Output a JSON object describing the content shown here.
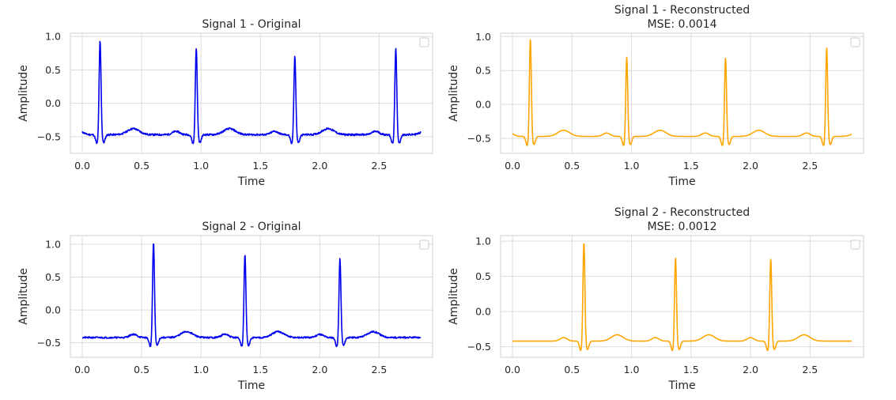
{
  "colors": {
    "original": "#0000ee",
    "reconstructed": "#ffa500",
    "grid": "#dcdcdc"
  },
  "chart_data": [
    {
      "type": "line",
      "title": "Signal 1 - Original",
      "subtitle": "",
      "xlabel": "Time",
      "ylabel": "Amplitude",
      "xlim": [
        -0.1,
        2.95
      ],
      "ylim": [
        -0.75,
        1.05
      ],
      "xticks": [
        0.0,
        0.5,
        1.0,
        1.5,
        2.0,
        2.5
      ],
      "xtick_labels": [
        "0.0",
        "0.5",
        "1.0",
        "1.5",
        "2.0",
        "2.5"
      ],
      "yticks": [
        -0.5,
        0.0,
        0.5,
        1.0
      ],
      "ytick_labels": [
        "−0.5",
        "0.0",
        "0.5",
        "1.0"
      ],
      "grid": true,
      "legend": "top-right (empty)",
      "series": [
        {
          "color": "#0000ee",
          "noise": 0.013,
          "seed": 11,
          "peaks": [
            0.15,
            0.96,
            1.79,
            2.64
          ],
          "peak_heights": [
            0.96,
            0.85,
            0.73,
            0.84
          ],
          "baseline": -0.47,
          "x_end": 2.85
        }
      ]
    },
    {
      "type": "line",
      "title": "Signal 1 - Reconstructed",
      "subtitle": "MSE: 0.0014",
      "xlabel": "Time",
      "ylabel": "Amplitude",
      "xlim": [
        -0.1,
        2.95
      ],
      "ylim": [
        -0.72,
        1.05
      ],
      "xticks": [
        0.0,
        0.5,
        1.0,
        1.5,
        2.0,
        2.5
      ],
      "xtick_labels": [
        "0.0",
        "0.5",
        "1.0",
        "1.5",
        "2.0",
        "2.5"
      ],
      "yticks": [
        -0.5,
        0.0,
        0.5,
        1.0
      ],
      "ytick_labels": [
        "−0.5",
        "0.0",
        "0.5",
        "1.0"
      ],
      "grid": true,
      "legend": "top-right (empty)",
      "series": [
        {
          "color": "#ffa500",
          "noise": 0.0,
          "seed": 12,
          "peaks": [
            0.15,
            0.96,
            1.79,
            2.64
          ],
          "peak_heights": [
            0.99,
            0.72,
            0.71,
            0.86
          ],
          "baseline": -0.47,
          "x_end": 2.85
        }
      ]
    },
    {
      "type": "line",
      "title": "Signal 2 - Original",
      "subtitle": "",
      "xlabel": "Time",
      "ylabel": "Amplitude",
      "xlim": [
        -0.1,
        2.95
      ],
      "ylim": [
        -0.72,
        1.13
      ],
      "xticks": [
        0.0,
        0.5,
        1.0,
        1.5,
        2.0,
        2.5
      ],
      "xtick_labels": [
        "0.0",
        "0.5",
        "1.0",
        "1.5",
        "2.0",
        "2.5"
      ],
      "yticks": [
        -0.5,
        0.0,
        0.5,
        1.0
      ],
      "ytick_labels": [
        "−0.5",
        "0.0",
        "0.5",
        "1.0"
      ],
      "grid": true,
      "legend": "top-right (empty)",
      "series": [
        {
          "color": "#0000ee",
          "noise": 0.012,
          "seed": 21,
          "peaks": [
            0.6,
            1.37,
            2.17
          ],
          "peak_heights": [
            1.05,
            0.86,
            0.8
          ],
          "baseline": -0.42,
          "x_end": 2.85
        }
      ]
    },
    {
      "type": "line",
      "title": "Signal 2 - Reconstructed",
      "subtitle": "MSE: 0.0012",
      "xlabel": "Time",
      "ylabel": "Amplitude",
      "xlim": [
        -0.1,
        2.95
      ],
      "ylim": [
        -0.65,
        1.08
      ],
      "xticks": [
        0.0,
        0.5,
        1.0,
        1.5,
        2.0,
        2.5
      ],
      "xtick_labels": [
        "0.0",
        "0.5",
        "1.0",
        "1.5",
        "2.0",
        "2.5"
      ],
      "yticks": [
        -0.5,
        0.0,
        0.5,
        1.0
      ],
      "ytick_labels": [
        "−0.5",
        "0.0",
        "0.5",
        "1.0"
      ],
      "grid": true,
      "legend": "top-right (empty)",
      "series": [
        {
          "color": "#ffa500",
          "noise": 0.0,
          "seed": 22,
          "peaks": [
            0.6,
            1.37,
            2.17
          ],
          "peak_heights": [
            1.01,
            0.79,
            0.77
          ],
          "baseline": -0.42,
          "x_end": 2.85
        }
      ]
    }
  ]
}
